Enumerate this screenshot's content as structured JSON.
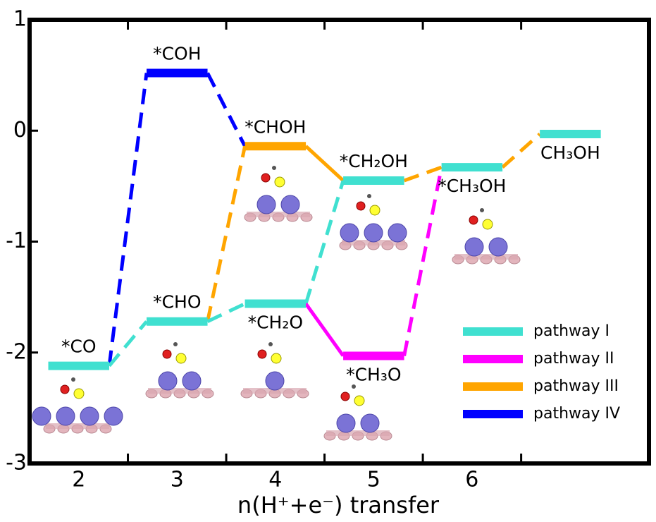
{
  "chart_data": {
    "type": "energy_diagram",
    "xlabel": "n(H⁺+e⁻) transfer",
    "xlim": [
      1.5,
      7.8
    ],
    "xticks": [
      2,
      3,
      4,
      5,
      6
    ],
    "xminorticks": [
      2.5,
      3.5,
      4.5,
      5.5,
      6.5
    ],
    "ylim": [
      -3,
      1
    ],
    "yticks": [
      -3,
      -2,
      -1,
      0,
      1
    ],
    "legend": "lower right",
    "series": [
      {
        "name": "pathway I",
        "color": "#40e0d0"
      },
      {
        "name": "pathway II",
        "color": "#ff00ff"
      },
      {
        "name": "pathway III",
        "color": "#ffa500"
      },
      {
        "name": "pathway IV",
        "color": "#0000ff"
      }
    ],
    "states": [
      {
        "label": "*CO",
        "x": 2,
        "value": -2.12,
        "color": "#40e0d0"
      },
      {
        "label": "*COH",
        "x": 3,
        "value": 0.52,
        "color": "#0000ff"
      },
      {
        "label": "*CHO",
        "x": 3,
        "value": -1.72,
        "color": "#40e0d0"
      },
      {
        "label": "*CHOH",
        "x": 4,
        "value": -0.14,
        "color": "#ffa500"
      },
      {
        "label": "*CH₂O",
        "x": 4,
        "value": -1.56,
        "color": "#40e0d0"
      },
      {
        "label": "*CH₂OH",
        "x": 5,
        "value": -0.45,
        "color": "#40e0d0"
      },
      {
        "label": "*CH₃O",
        "x": 5,
        "value": -2.03,
        "color": "#ff00ff"
      },
      {
        "label": "*CH₃OH",
        "x": 6,
        "value": -0.33,
        "color": "#40e0d0"
      },
      {
        "label": "CH₃OH",
        "x": 7,
        "value": -0.03,
        "color": "#40e0d0"
      }
    ],
    "links": [
      {
        "from": "*CO",
        "to": "*COH",
        "color": "#0000ff",
        "dashed": true
      },
      {
        "from": "*CO",
        "to": "*CHO",
        "color": "#40e0d0",
        "dashed": true
      },
      {
        "from": "*COH",
        "to": "*CHOH",
        "color": "#0000ff",
        "dashed": true
      },
      {
        "from": "*CHO",
        "to": "*CHOH",
        "color": "#ffa500",
        "dashed": true
      },
      {
        "from": "*CHO",
        "to": "*CH₂O",
        "color": "#40e0d0",
        "dashed": true
      },
      {
        "from": "*CHOH",
        "to": "*CH₂OH",
        "color": "#ffa500",
        "dashed": false
      },
      {
        "from": "*CH₂O",
        "to": "*CH₂OH",
        "color": "#40e0d0",
        "dashed": true
      },
      {
        "from": "*CH₂O",
        "to": "*CH₃O",
        "color": "#ff00ff",
        "dashed": false
      },
      {
        "from": "*CH₃O",
        "to": "*CH₃OH",
        "color": "#ff00ff",
        "dashed": true
      },
      {
        "from": "*CH₂OH",
        "to": "*CH₃OH",
        "color": "#ffa500",
        "dashed": true
      },
      {
        "from": "*CH₃OH",
        "to": "CH₃OH",
        "color": "#ffa500",
        "dashed": true
      }
    ]
  }
}
